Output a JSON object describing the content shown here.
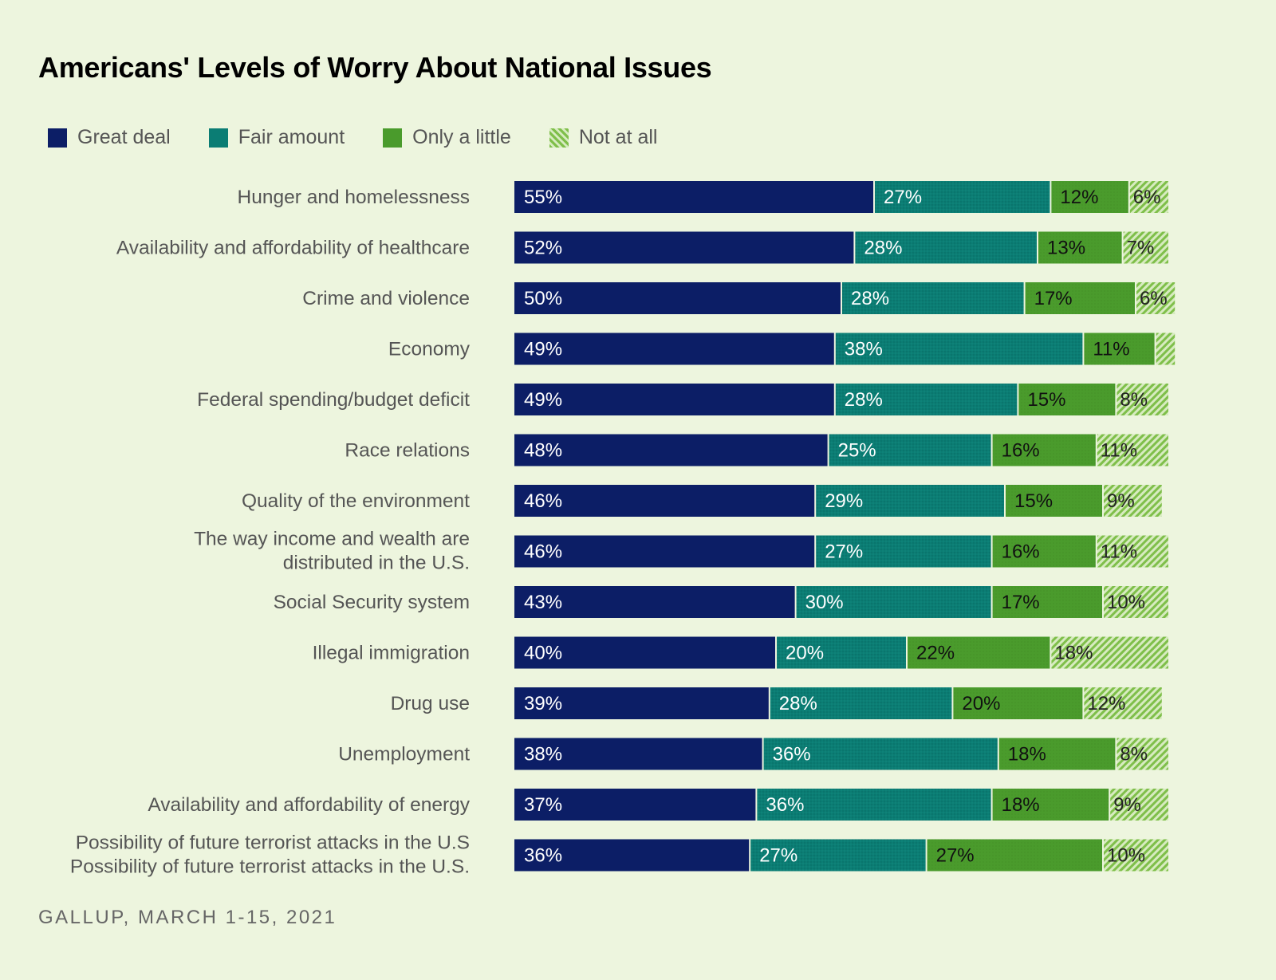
{
  "colors": {
    "background": "#edf5de",
    "great_deal": "#0c1e66",
    "fair_amount": "#0b7d74",
    "only_a_little": "#4a9b2c",
    "not_at_all": "#9ccc6a"
  },
  "chart_data": {
    "type": "bar",
    "orientation": "horizontal",
    "stacked": true,
    "title": "Americans' Levels of Worry About National Issues",
    "source": "GALLUP, MARCH 1-15, 2021",
    "legend_position": "top-left",
    "categories": [
      "Hunger and homelessness",
      "Availability and affordability of healthcare",
      "Crime and violence",
      "Economy",
      "Federal spending/budget deficit",
      "Race relations",
      "Quality of the environment",
      "The way income and wealth are distributed in the U.S.",
      "Social Security system",
      "Illegal immigration",
      "Drug use",
      "Unemployment",
      "Availability and affordability of energy",
      "Possibility of future terrorist attacks in the U.S."
    ],
    "series": [
      {
        "name": "Great deal",
        "values": [
          55,
          52,
          50,
          49,
          49,
          48,
          46,
          46,
          43,
          40,
          39,
          38,
          37,
          36
        ]
      },
      {
        "name": "Fair amount",
        "values": [
          27,
          28,
          28,
          38,
          28,
          25,
          29,
          27,
          30,
          20,
          28,
          36,
          36,
          27
        ]
      },
      {
        "name": "Only a little",
        "values": [
          12,
          13,
          17,
          11,
          15,
          16,
          15,
          16,
          17,
          22,
          20,
          18,
          18,
          27
        ]
      },
      {
        "name": "Not at all",
        "values": [
          6,
          7,
          6,
          3,
          8,
          11,
          9,
          11,
          10,
          18,
          12,
          8,
          9,
          10
        ]
      }
    ],
    "data_labels": [
      [
        "55%",
        "27%",
        "12%",
        "6%"
      ],
      [
        "52%",
        "28%",
        "13%",
        "7%"
      ],
      [
        "50%",
        "28%",
        "17%",
        "6%"
      ],
      [
        "49%",
        "38%",
        "11%",
        ""
      ],
      [
        "49%",
        "28%",
        "15%",
        "8%"
      ],
      [
        "48%",
        "25%",
        "16%",
        "11%"
      ],
      [
        "46%",
        "29%",
        "15%",
        "9%"
      ],
      [
        "46%",
        "27%",
        "16%",
        "11%"
      ],
      [
        "43%",
        "30%",
        "17%",
        "10%"
      ],
      [
        "40%",
        "20%",
        "22%",
        "18%"
      ],
      [
        "39%",
        "28%",
        "20%",
        "12%"
      ],
      [
        "38%",
        "36%",
        "18%",
        "8%"
      ],
      [
        "37%",
        "36%",
        "18%",
        "9%"
      ],
      [
        "36%",
        "27%",
        "27%",
        "10%"
      ]
    ],
    "xlim": [
      0,
      100
    ],
    "grid": false
  }
}
